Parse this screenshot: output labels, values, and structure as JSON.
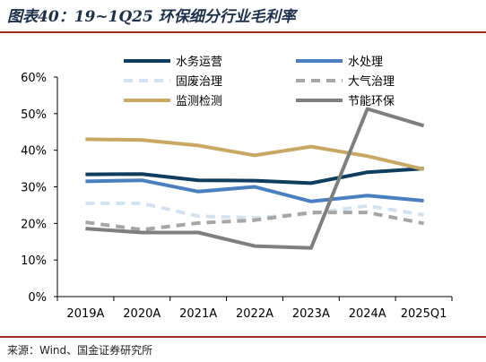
{
  "title": "图表40：19~1Q25 环保细分行业毛利率",
  "source": "来源：Wind、国金证券研究所",
  "chart_data": {
    "type": "line",
    "categories": [
      "2019A",
      "2020A",
      "2021A",
      "2022A",
      "2023A",
      "2024A",
      "2025Q1"
    ],
    "ylim": [
      0,
      60
    ],
    "yticks": [
      0,
      10,
      20,
      30,
      40,
      50,
      60
    ],
    "ytick_labels": [
      "0%",
      "10%",
      "20%",
      "30%",
      "40%",
      "50%",
      "60%"
    ],
    "grid": false,
    "legend_position": "top",
    "series": [
      {
        "name": "水务运营",
        "color": "#0f3d5e",
        "dash": "solid",
        "values": [
          33.4,
          33.5,
          31.8,
          31.7,
          31.0,
          34.0,
          35.0
        ]
      },
      {
        "name": "水处理",
        "color": "#4a7fc0",
        "dash": "solid",
        "values": [
          31.5,
          31.8,
          28.7,
          30.0,
          26.0,
          27.6,
          26.2
        ]
      },
      {
        "name": "固废治理",
        "color": "#d3e2f0",
        "dash": "dashed",
        "values": [
          25.5,
          25.5,
          22.0,
          21.5,
          22.7,
          24.8,
          22.3
        ]
      },
      {
        "name": "大气治理",
        "color": "#a6a6a6",
        "dash": "dashed",
        "values": [
          20.3,
          18.3,
          20.1,
          20.9,
          23.0,
          23.0,
          20.0
        ]
      },
      {
        "name": "监测检测",
        "color": "#c9a864",
        "dash": "solid",
        "values": [
          43.0,
          42.8,
          41.3,
          38.6,
          41.0,
          38.4,
          34.8
        ]
      },
      {
        "name": "节能环保",
        "color": "#7f7f7f",
        "dash": "solid",
        "values": [
          18.6,
          17.5,
          17.5,
          13.8,
          13.3,
          51.3,
          46.7
        ]
      }
    ]
  }
}
